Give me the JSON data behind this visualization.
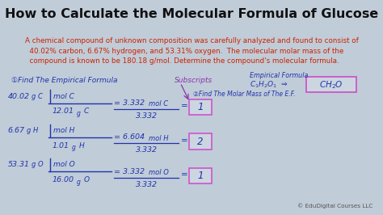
{
  "title": "How to Calculate the Molecular Formula of Glucose",
  "title_fontsize": 11.5,
  "title_color": "#111111",
  "fig_bg": "#c0ccd8",
  "title_bg": "#e8e8e8",
  "header_bg": "#ffffd0",
  "header_border": "#cc2200",
  "header_text_color": "#cc2200",
  "header_fontsize": 6.3,
  "body_bg": "#ccd6e0",
  "body_border": "#555566",
  "watermark": "© EduDigital Courses LLC",
  "watermark_color": "#555555",
  "hw": "#2233aa",
  "hw2": "#3344cc",
  "purple": "#8833aa",
  "pink": "#cc55cc",
  "step1": "①Find The Empirical Formula",
  "subscripts_lbl": "Subscripts",
  "emp_lbl": "Empirical Formula",
  "step2": "②Find The Molar Mass of The E.F."
}
